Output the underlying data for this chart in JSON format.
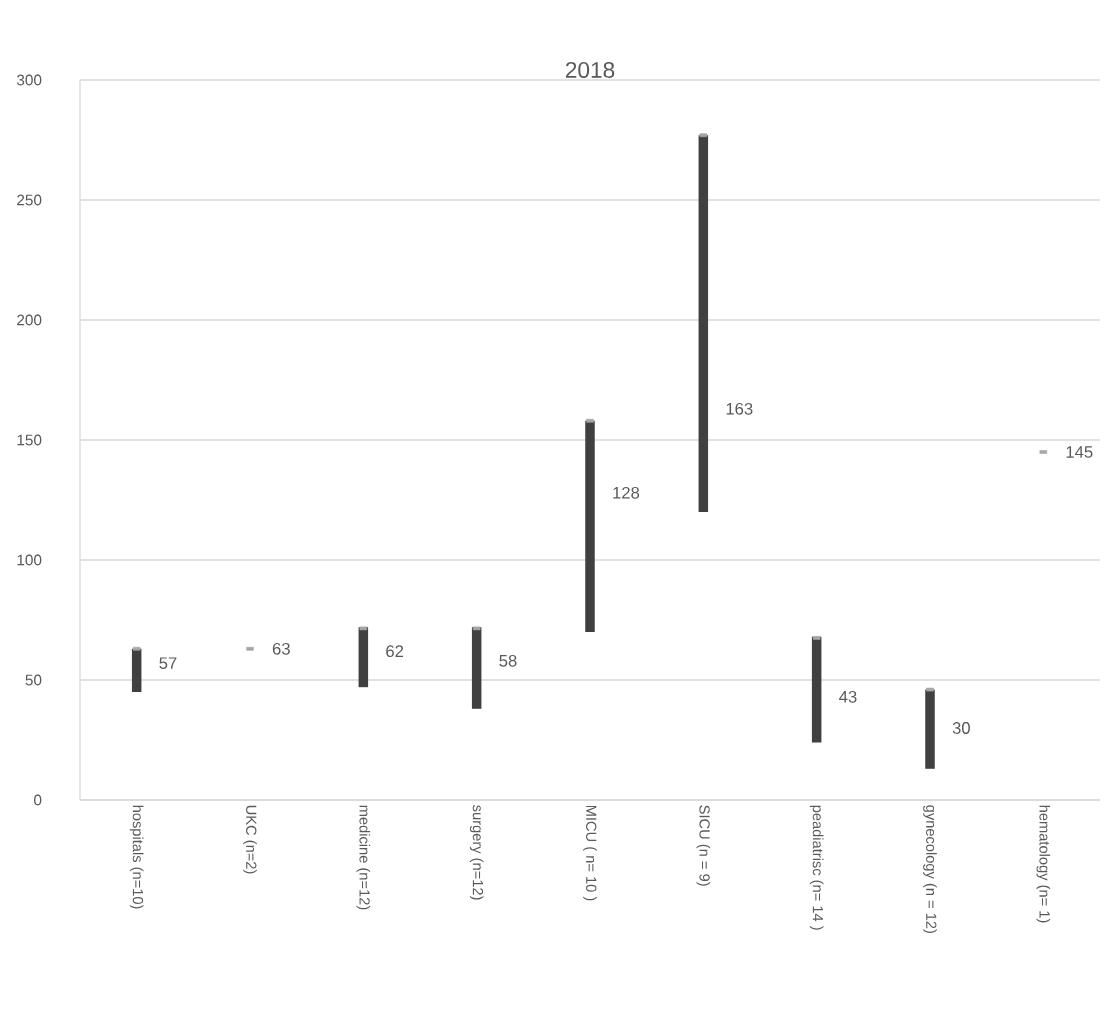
{
  "chart_data": {
    "type": "bar",
    "title": "2018",
    "categories": [
      "hospitals  (n=10)",
      "UKC (n=2)",
      "medicine (n=12)",
      "surgery (n=12)",
      "MICU ( n= 10 )",
      "SICU  (n = 9)",
      "peadiatrisc (n= 14 )",
      "gynecology (n = 12)",
      "hematology (n= 1)"
    ],
    "series": [
      {
        "color": "#404040",
        "base": [
          45,
          null,
          47,
          38,
          70,
          120,
          24,
          13,
          null
        ],
        "values": [
          18,
          null,
          25,
          34,
          88,
          157,
          44,
          33,
          null
        ]
      },
      {
        "type": "scatter",
        "color": "#a6a6a6",
        "x": [
          "hospitals  (n=10)",
          "UKC (n=2)",
          "medicine (n=12)",
          "surgery (n=12)",
          "MICU ( n= 10 )",
          "SICU  (n = 9)",
          "peadiatrisc (n= 14 )",
          "gynecology (n = 12)",
          "hematology (n= 1)"
        ],
        "values": [
          63,
          63,
          71.5,
          71.5,
          158,
          277,
          67.5,
          46,
          145
        ]
      }
    ],
    "annotations": [
      {
        "text": "57",
        "x": "hospitals  (n=10)",
        "y": 57
      },
      {
        "text": "63",
        "x": "UKC (n=2)",
        "y": 63
      },
      {
        "text": "62",
        "x": "medicine (n=12)",
        "y": 62
      },
      {
        "text": "58",
        "x": "surgery (n=12)",
        "y": 58
      },
      {
        "text": "128",
        "x": "MICU ( n= 10 )",
        "y": 128
      },
      {
        "text": "163",
        "x": "SICU  (n = 9)",
        "y": 163
      },
      {
        "text": "43",
        "x": "peadiatrisc (n= 14 )",
        "y": 43
      },
      {
        "text": "30",
        "x": "gynecology (n = 12)",
        "y": 30
      },
      {
        "text": "145",
        "x": "hematology (n= 1)",
        "y": 145
      }
    ],
    "ylim": [
      0,
      300
    ],
    "yticks": [
      0,
      50,
      100,
      150,
      200,
      250,
      300
    ],
    "grid": "y"
  }
}
